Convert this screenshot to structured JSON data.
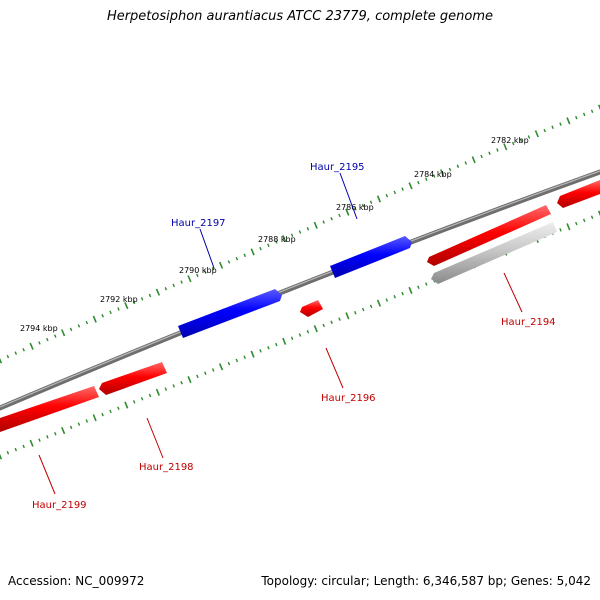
{
  "title": "Herpetosiphon aurantiacus ATCC 23779, complete genome",
  "footer": {
    "accession": "Accession: NC_009972",
    "summary": "Topology: circular; Length: 6,346,587 bp; Genes: 5,042"
  },
  "colors": {
    "forward_strand": "#0000ff",
    "reverse_strand": "#ff0000",
    "pseudogene": "#bdbdbd",
    "backbone": "#808080",
    "ticks": "#2e8b2e"
  },
  "ticks": [
    "2782 kbp",
    "2784 kbp",
    "2786 kbp",
    "2788 kbp",
    "2790 kbp",
    "2792 kbp",
    "2794 kbp"
  ],
  "genes": [
    {
      "name": "Haur_2194",
      "strand": "reverse",
      "color": "#c00000"
    },
    {
      "name": "Haur_2195",
      "strand": "forward",
      "color": "#0000aa"
    },
    {
      "name": "Haur_2196",
      "strand": "reverse",
      "color": "#c00000"
    },
    {
      "name": "Haur_2197",
      "strand": "forward",
      "color": "#0000aa"
    },
    {
      "name": "Haur_2198",
      "strand": "reverse",
      "color": "#c00000"
    },
    {
      "name": "Haur_2199",
      "strand": "reverse",
      "color": "#c00000"
    }
  ]
}
